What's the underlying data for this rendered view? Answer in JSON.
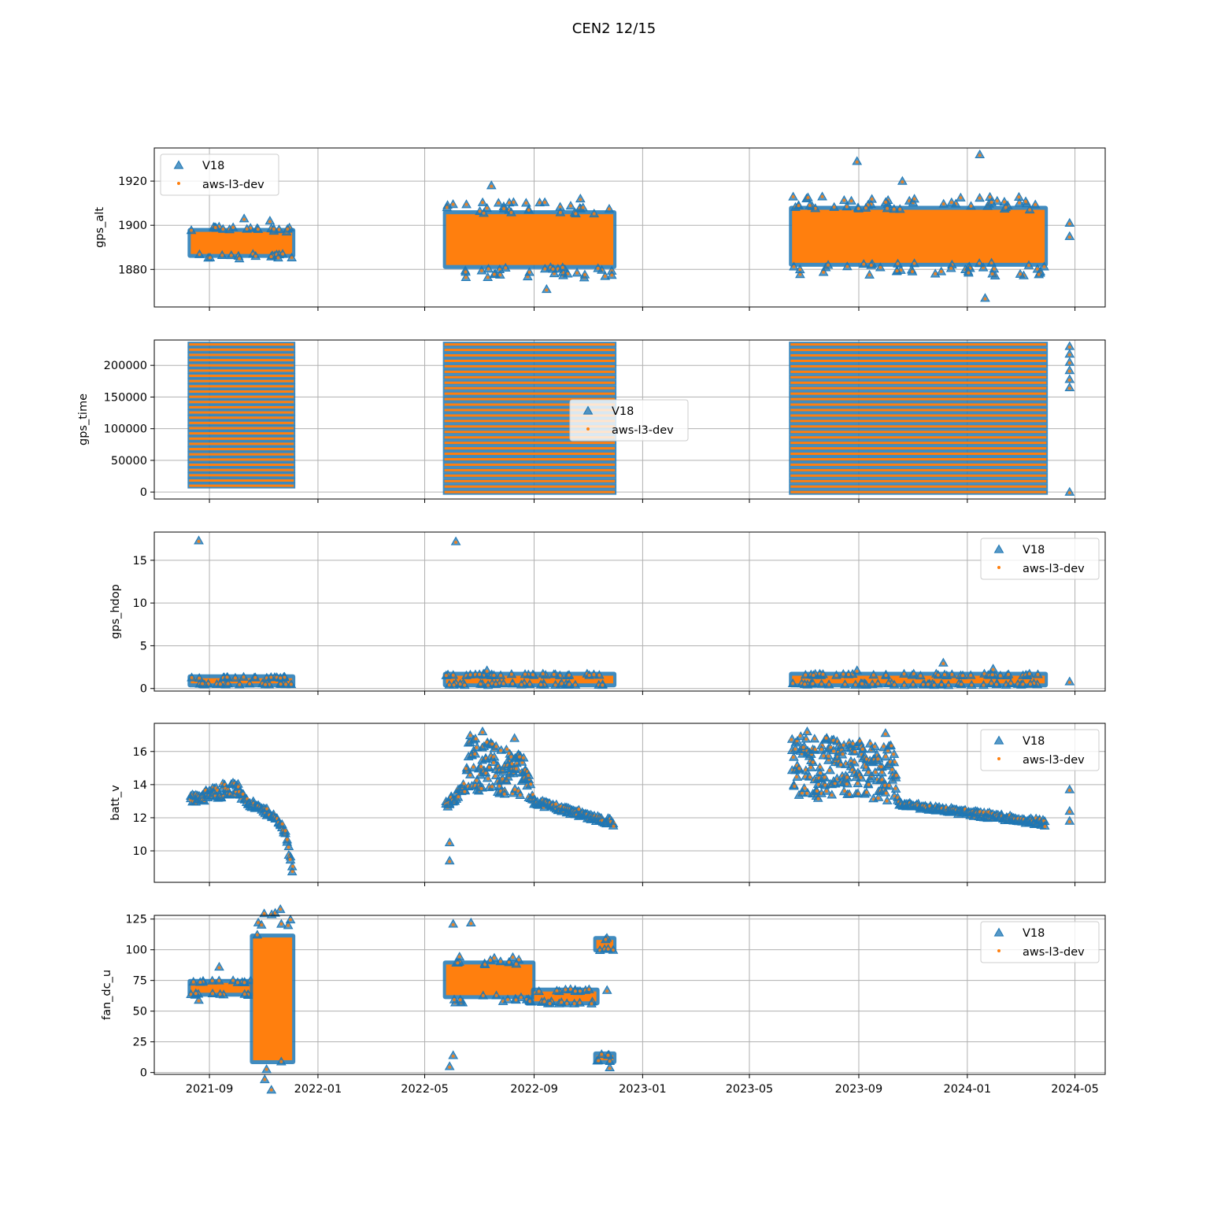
{
  "figure": {
    "title": "CEN2 12/15"
  },
  "x_ticks": [
    "2021-09",
    "2022-01",
    "2022-05",
    "2022-09",
    "2023-01",
    "2023-05",
    "2023-09",
    "2024-01",
    "2024-05"
  ],
  "colors": {
    "v18": "#1f77b4",
    "aws": "#ff7f0e",
    "grid": "#b0b0b0"
  },
  "chart_data": [
    {
      "type": "scatter",
      "ylabel": "gps_alt",
      "xlim": [
        "2021-07-01",
        "2024-06-04"
      ],
      "ylim": [
        1863,
        1935
      ],
      "yticks": [
        1880,
        1900,
        1920
      ],
      "grid": true,
      "legend": "upper left",
      "series": [
        {
          "name": "V18",
          "marker": "triangle",
          "segments": [
            {
              "start": "2021-08-11",
              "end": "2021-12-03",
              "low": 1887,
              "high": 1897
            },
            {
              "start": "2022-05-25",
              "end": "2022-11-29",
              "low": 1882,
              "high": 1905
            },
            {
              "start": "2023-06-18",
              "end": "2024-03-28",
              "low": 1883,
              "high": 1907
            }
          ],
          "outliers": [
            [
              "2021-10-10",
              1903
            ],
            [
              "2021-11-08",
              1902
            ],
            [
              "2022-07-15",
              1918
            ],
            [
              "2022-10-23",
              1912
            ],
            [
              "2022-09-15",
              1871
            ],
            [
              "2023-08-30",
              1929
            ],
            [
              "2024-01-15",
              1932
            ],
            [
              "2023-10-20",
              1920
            ],
            [
              "2024-01-21",
              1867
            ],
            [
              "2024-04-25",
              1901
            ],
            [
              "2024-04-25",
              1895
            ]
          ]
        },
        {
          "name": "aws-l3-dev",
          "marker": "dot"
        }
      ]
    },
    {
      "type": "scatter",
      "ylabel": "gps_time",
      "xlim": [
        "2021-07-01",
        "2024-06-04"
      ],
      "ylim": [
        -11000,
        240000
      ],
      "yticks": [
        0,
        50000,
        100000,
        150000,
        200000
      ],
      "grid": true,
      "legend": "center",
      "series": [
        {
          "name": "V18",
          "marker": "triangle",
          "segments": [
            {
              "start": "2021-08-11",
              "end": "2021-12-03",
              "low": 10000,
              "high": 233000
            },
            {
              "start": "2022-05-25",
              "end": "2022-11-29",
              "low": 0,
              "high": 233000
            },
            {
              "start": "2023-06-18",
              "end": "2024-03-28",
              "low": 0,
              "high": 233000
            }
          ],
          "outliers": [
            [
              "2024-04-25",
              230000
            ],
            [
              "2024-04-25",
              218000
            ],
            [
              "2024-04-25",
              205000
            ],
            [
              "2024-04-25",
              192000
            ],
            [
              "2024-04-25",
              178000
            ],
            [
              "2024-04-25",
              165000
            ],
            [
              "2024-04-25",
              0
            ]
          ]
        },
        {
          "name": "aws-l3-dev",
          "marker": "dot"
        }
      ]
    },
    {
      "type": "scatter",
      "ylabel": "gps_hdop",
      "xlim": [
        "2021-07-01",
        "2024-06-04"
      ],
      "ylim": [
        -0.3,
        18.3
      ],
      "yticks": [
        0,
        5,
        10,
        15
      ],
      "grid": true,
      "legend": "upper right",
      "series": [
        {
          "name": "V18",
          "marker": "triangle",
          "segments": [
            {
              "start": "2021-08-11",
              "end": "2021-12-03",
              "low": 0.6,
              "high": 1.2
            },
            {
              "start": "2022-05-25",
              "end": "2022-11-29",
              "low": 0.6,
              "high": 1.5
            },
            {
              "start": "2023-06-18",
              "end": "2024-03-28",
              "low": 0.6,
              "high": 1.5
            }
          ],
          "outliers": [
            [
              "2021-08-20",
              17.3
            ],
            [
              "2022-06-05",
              17.2
            ],
            [
              "2022-07-10",
              2.1
            ],
            [
              "2023-08-30",
              2.1
            ],
            [
              "2023-12-05",
              3.0
            ],
            [
              "2024-01-30",
              2.3
            ],
            [
              "2024-04-25",
              0.8
            ]
          ]
        },
        {
          "name": "aws-l3-dev",
          "marker": "dot"
        }
      ]
    },
    {
      "type": "scatter",
      "ylabel": "batt_v",
      "xlim": [
        "2021-07-01",
        "2024-06-04"
      ],
      "ylim": [
        8.1,
        17.7
      ],
      "yticks": [
        10,
        12,
        14,
        16
      ],
      "grid": true,
      "legend": "upper right",
      "series": [
        {
          "name": "V18",
          "marker": "triangle",
          "segments": [
            {
              "start": "2021-08-11",
              "end": "2021-12-03",
              "profile": [
                [
                  "2021-08-11",
                  12.9,
                  13.4
                ],
                [
                  "2021-08-25",
                  13.0,
                  13.6
                ],
                [
                  "2021-09-15",
                  13.2,
                  14.1
                ],
                [
                  "2021-10-01",
                  13.3,
                  14.2
                ],
                [
                  "2021-10-20",
                  12.5,
                  13.0
                ],
                [
                  "2021-11-10",
                  12.0,
                  12.4
                ],
                [
                  "2021-11-25",
                  11.0,
                  11.5
                ],
                [
                  "2021-12-03",
                  8.6,
                  9.4
                ]
              ]
            },
            {
              "start": "2022-05-25",
              "end": "2022-11-29",
              "profile": [
                [
                  "2022-05-25",
                  12.5,
                  13.0
                ],
                [
                  "2022-06-15",
                  13.5,
                  14.2
                ],
                [
                  "2022-06-20",
                  13.5,
                  17.0
                ],
                [
                  "2022-08-20",
                  13.3,
                  16.0
                ],
                [
                  "2022-09-01",
                  12.8,
                  13.2
                ],
                [
                  "2022-11-29",
                  11.5,
                  11.9
                ]
              ]
            },
            {
              "start": "2023-06-18",
              "end": "2024-03-28",
              "profile": [
                [
                  "2023-06-18",
                  13.2,
                  17.0
                ],
                [
                  "2023-10-10",
                  13.0,
                  16.5
                ],
                [
                  "2023-10-15",
                  12.7,
                  13.0
                ],
                [
                  "2024-03-28",
                  11.5,
                  11.9
                ]
              ]
            }
          ],
          "outliers": [
            [
              "2022-05-29",
              10.5
            ],
            [
              "2022-05-29",
              9.4
            ],
            [
              "2022-07-05",
              17.2
            ],
            [
              "2022-08-10",
              16.8
            ],
            [
              "2023-07-05",
              17.2
            ],
            [
              "2023-10-01",
              17.1
            ],
            [
              "2024-04-25",
              13.7
            ],
            [
              "2024-04-25",
              12.4
            ],
            [
              "2024-04-25",
              11.8
            ]
          ]
        },
        {
          "name": "aws-l3-dev",
          "marker": "dot"
        }
      ]
    },
    {
      "type": "scatter",
      "ylabel": "fan_dc_u",
      "xlim": [
        "2021-07-01",
        "2024-06-04"
      ],
      "ylim": [
        -1.5,
        128
      ],
      "yticks": [
        0,
        25,
        50,
        75,
        100,
        125
      ],
      "grid": true,
      "legend": "upper right",
      "series": [
        {
          "name": "V18",
          "marker": "triangle",
          "segments": [
            {
              "start": "2021-08-11",
              "end": "2021-10-20",
              "low": 65,
              "high": 73
            },
            {
              "start": "2021-10-20",
              "end": "2021-12-03",
              "low": 10,
              "high": 110
            },
            {
              "start": "2022-05-25",
              "end": "2022-08-30",
              "low": 63,
              "high": 88
            },
            {
              "start": "2022-09-01",
              "end": "2022-11-10",
              "low": 58,
              "high": 66
            },
            {
              "start": "2022-11-10",
              "end": "2022-11-29",
              "low": 10,
              "high": 14
            },
            {
              "start": "2022-11-10",
              "end": "2022-11-29",
              "low": 101,
              "high": 108
            }
          ],
          "outliers": [
            [
              "2021-08-20",
              59
            ],
            [
              "2021-09-12",
              86
            ],
            [
              "2022-06-02",
              121
            ],
            [
              "2022-06-22",
              122
            ],
            [
              "2022-06-02",
              14
            ],
            [
              "2022-05-29",
              5
            ],
            [
              "2022-11-22",
              67
            ],
            [
              "2022-11-25",
              4
            ]
          ]
        },
        {
          "name": "aws-l3-dev",
          "marker": "dot"
        }
      ]
    }
  ]
}
